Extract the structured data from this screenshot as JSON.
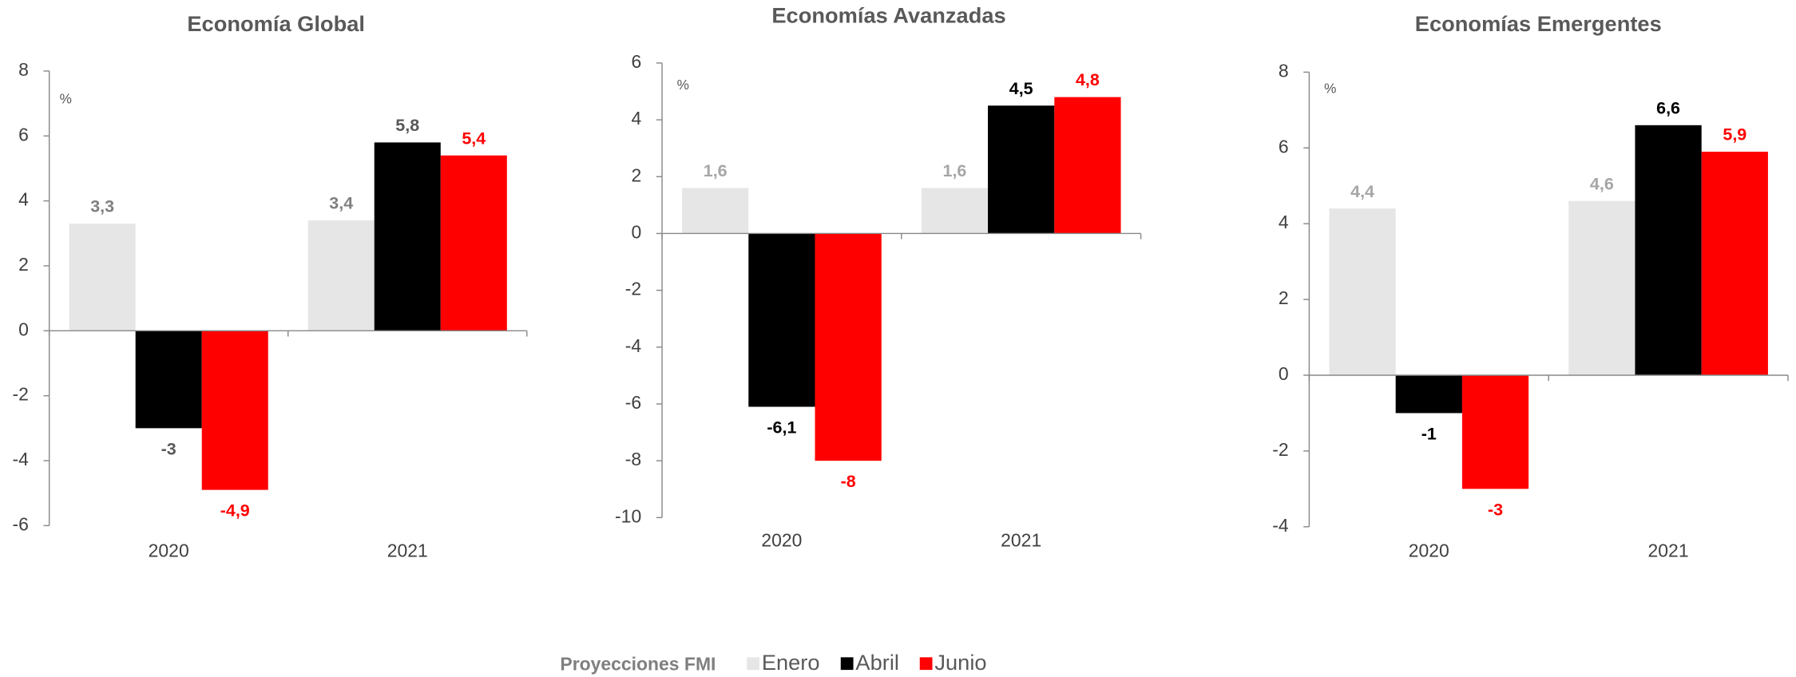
{
  "chart_data": [
    {
      "type": "bar",
      "title": "Economía Global",
      "ylabel": "%",
      "categories": [
        "2020",
        "2021"
      ],
      "ylim": [
        -6,
        8
      ],
      "yticks": [
        -6,
        -4,
        -2,
        0,
        2,
        4,
        6,
        8
      ],
      "series": [
        {
          "name": "Enero",
          "color": "#e6e6e6",
          "label_color": "#808080",
          "values": [
            3.3,
            3.4
          ],
          "value_labels": [
            "3,3",
            "3,4"
          ]
        },
        {
          "name": "Abril",
          "color": "#000000",
          "label_color": "#595959",
          "values": [
            -3,
            5.8
          ],
          "value_labels": [
            "-3",
            "5,8"
          ]
        },
        {
          "name": "Junio",
          "color": "#ff0000",
          "label_color": "#ff0000",
          "values": [
            -4.9,
            5.4
          ],
          "value_labels": [
            "-4,9",
            "5,4"
          ]
        }
      ]
    },
    {
      "type": "bar",
      "title": "Economías Avanzadas",
      "ylabel": "%",
      "categories": [
        "2020",
        "2021"
      ],
      "ylim": [
        -10,
        6
      ],
      "yticks": [
        -10,
        -8,
        -6,
        -4,
        -2,
        0,
        2,
        4,
        6
      ],
      "series": [
        {
          "name": "Enero",
          "color": "#e6e6e6",
          "label_color": "#a6a6a6",
          "values": [
            1.6,
            1.6
          ],
          "value_labels": [
            "1,6",
            "1,6"
          ]
        },
        {
          "name": "Abril",
          "color": "#000000",
          "label_color": "#000000",
          "values": [
            -6.1,
            4.5
          ],
          "value_labels": [
            "-6,1",
            "4,5"
          ]
        },
        {
          "name": "Junio",
          "color": "#ff0000",
          "label_color": "#ff0000",
          "values": [
            -8,
            4.8
          ],
          "value_labels": [
            "-8",
            "4,8"
          ]
        }
      ]
    },
    {
      "type": "bar",
      "title": "Economías Emergentes",
      "ylabel": "%",
      "categories": [
        "2020",
        "2021"
      ],
      "ylim": [
        -4,
        8
      ],
      "yticks": [
        -4,
        -2,
        0,
        2,
        4,
        6,
        8
      ],
      "series": [
        {
          "name": "Enero",
          "color": "#e6e6e6",
          "label_color": "#a6a6a6",
          "values": [
            4.4,
            4.6
          ],
          "value_labels": [
            "4,4",
            "4,6"
          ]
        },
        {
          "name": "Abril",
          "color": "#000000",
          "label_color": "#000000",
          "values": [
            -1,
            6.6
          ],
          "value_labels": [
            "-1",
            "6,6"
          ]
        },
        {
          "name": "Junio",
          "color": "#ff0000",
          "label_color": "#ff0000",
          "values": [
            -3,
            5.9
          ],
          "value_labels": [
            "-3",
            "5,9"
          ]
        }
      ]
    }
  ],
  "legend": {
    "title": "Proyecciones FMI"
  }
}
